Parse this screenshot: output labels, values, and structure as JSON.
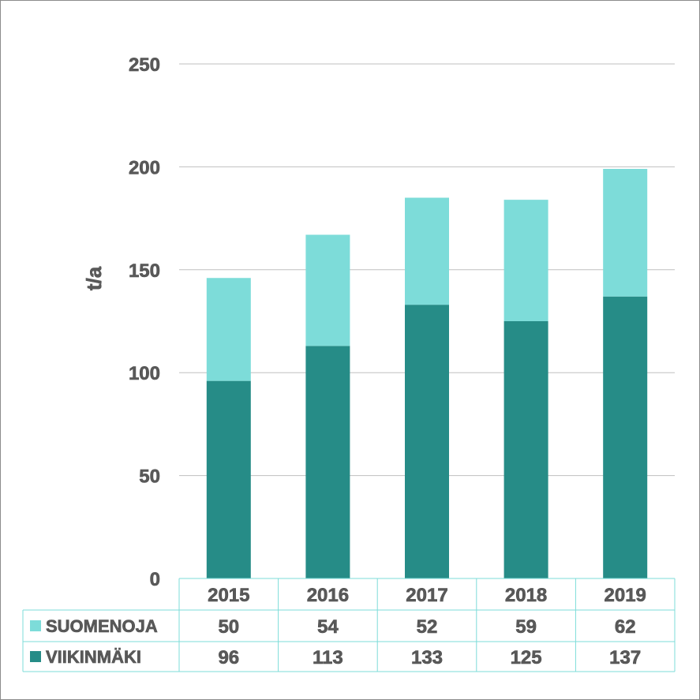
{
  "chart_data": {
    "type": "bar",
    "stacked": true,
    "categories": [
      "2015",
      "2016",
      "2017",
      "2018",
      "2019"
    ],
    "series": [
      {
        "name": "VIIKINMÄKI",
        "values": [
          96,
          113,
          133,
          125,
          137
        ],
        "color": "#268c87"
      },
      {
        "name": "SUOMENOJA",
        "values": [
          50,
          54,
          52,
          59,
          62
        ],
        "color": "#7ddcd9"
      }
    ],
    "ylabel": "t/a",
    "ylim": [
      0,
      250
    ],
    "yticks": [
      0,
      50,
      100,
      150,
      200,
      250
    ],
    "grid": true,
    "legend": "data-table",
    "data_table": {
      "rows": [
        {
          "label": "SUOMENOJA",
          "values": [
            "50",
            "54",
            "52",
            "59",
            "62"
          ]
        },
        {
          "label": "VIIKINMÄKI",
          "values": [
            "96",
            "113",
            "133",
            "125",
            "137"
          ]
        }
      ]
    }
  }
}
